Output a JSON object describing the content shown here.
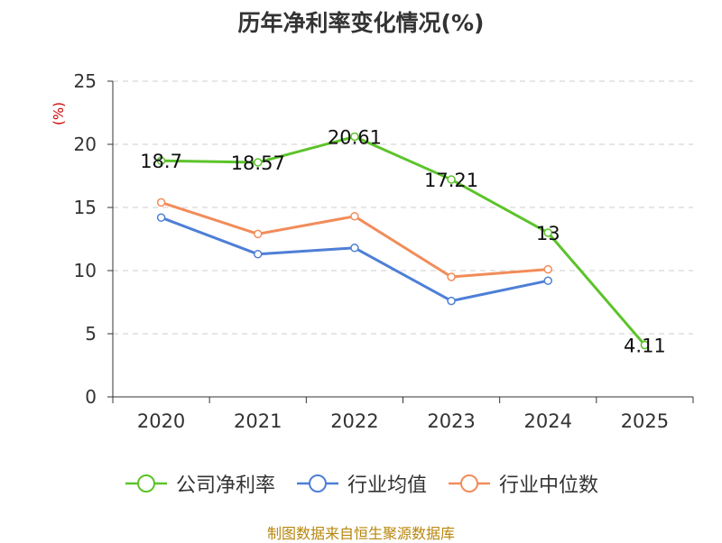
{
  "chart_data": {
    "type": "line",
    "title": "历年净利率变化情况(%)",
    "ylabel": "(%)",
    "xlabel": "",
    "categories": [
      "2020",
      "2021",
      "2022",
      "2023",
      "2024",
      "2025"
    ],
    "ylim": [
      0,
      25
    ],
    "yticks": [
      0,
      5,
      10,
      15,
      20,
      25
    ],
    "grid": true,
    "legend_position": "bottom",
    "series": [
      {
        "name": "公司净利率",
        "color": "#5cc32a",
        "values": [
          18.7,
          18.57,
          20.61,
          17.21,
          13,
          4.11
        ],
        "labels": [
          "18.7",
          "18.57",
          "20.61",
          "17.21",
          "13",
          "4.11"
        ],
        "show_labels": true
      },
      {
        "name": "行业均值",
        "color": "#4e7fd6",
        "values": [
          14.2,
          11.3,
          11.8,
          7.6,
          9.2,
          null
        ],
        "show_labels": false
      },
      {
        "name": "行业中位数",
        "color": "#f28c5a",
        "values": [
          15.4,
          12.9,
          14.3,
          9.5,
          10.1,
          null
        ],
        "show_labels": false
      }
    ]
  },
  "footer": {
    "source": "制图数据来自恒生聚源数据库"
  },
  "colors": {
    "axis": "#333333",
    "grid": "#cccccc",
    "ylabel": "#cc0000"
  }
}
